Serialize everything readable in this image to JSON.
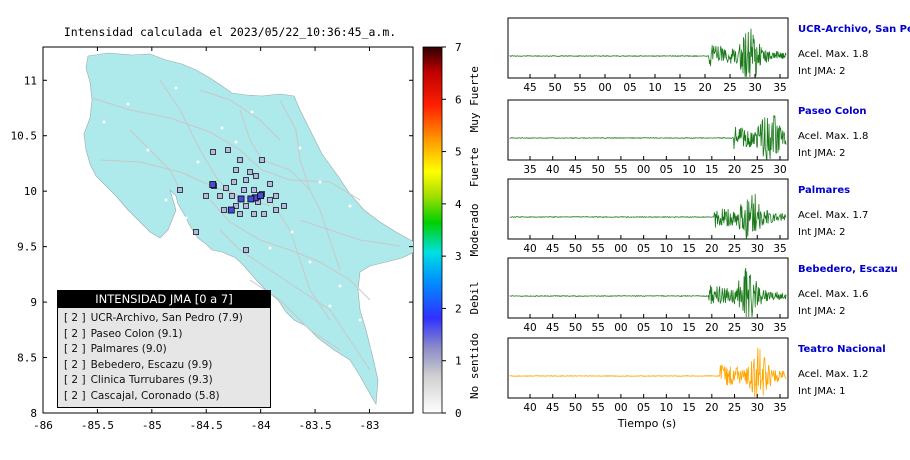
{
  "map": {
    "title": "Intensidad calculada el 2023/05/22_10:36:45_a.m.",
    "y_ticks": [
      "11",
      "10.5",
      "10",
      "9.5",
      "9",
      "8.5",
      "8"
    ],
    "x_ticks": [
      "-86",
      "-85.5",
      "-85",
      "-84.5",
      "-84",
      "-83.5",
      "-83"
    ]
  },
  "colorbar": {
    "ticks": [
      "7",
      "6",
      "5",
      "4",
      "3",
      "2",
      "1",
      "0"
    ],
    "labels": [
      "Muy Fuerte",
      "Fuerte",
      "Moderado",
      "Debil",
      "No sentido"
    ]
  },
  "legend": {
    "title": "INTENSIDAD JMA [0 a 7]",
    "rows": [
      {
        "level": "[ 2 ]",
        "name": "UCR-Archivo, San Pedro (7.9)"
      },
      {
        "level": "[ 2 ]",
        "name": "Paseo Colon (9.1)"
      },
      {
        "level": "[ 2 ]",
        "name": "Palmares (9.0)"
      },
      {
        "level": "[ 2 ]",
        "name": "Bebedero, Escazu (9.9)"
      },
      {
        "level": "[ 2 ]",
        "name": "Clinica Turrubares (9.3)"
      },
      {
        "level": "[ 2 ]",
        "name": "Cascajal, Coronado (5.8)"
      }
    ]
  },
  "traces": [
    {
      "station": "UCR-Archivo, San Pedro",
      "accel": "Acel. Max. 1.8",
      "jma": "Int JMA: 2",
      "ticks": [
        "45",
        "50",
        "55",
        "00",
        "05",
        "10",
        "15",
        "20",
        "25",
        "30",
        "35"
      ],
      "color": "#1a7a1a",
      "station_color": "#0000cc"
    },
    {
      "station": "Paseo Colon",
      "accel": "Acel. Max. 1.8",
      "jma": "Int JMA: 2",
      "ticks": [
        "35",
        "40",
        "45",
        "50",
        "55",
        "00",
        "05",
        "10",
        "15",
        "20",
        "25",
        "30"
      ],
      "color": "#1a7a1a",
      "station_color": "#0000cc"
    },
    {
      "station": "Palmares",
      "accel": "Acel. Max. 1.7",
      "jma": "Int JMA: 2",
      "ticks": [
        "40",
        "45",
        "50",
        "55",
        "00",
        "05",
        "10",
        "15",
        "20",
        "25",
        "30",
        "35"
      ],
      "color": "#1a7a1a",
      "station_color": "#0000cc"
    },
    {
      "station": "Bebedero, Escazu",
      "accel": "Acel. Max. 1.6",
      "jma": "Int JMA: 2",
      "ticks": [
        "40",
        "45",
        "50",
        "55",
        "00",
        "05",
        "10",
        "15",
        "20",
        "25",
        "30",
        "35"
      ],
      "color": "#1a7a1a",
      "station_color": "#0000cc"
    },
    {
      "station": "Teatro Nacional",
      "accel": "Acel. Max. 1.2",
      "jma": "Int JMA: 1",
      "ticks": [
        "40",
        "45",
        "50",
        "55",
        "00",
        "05",
        "10",
        "15",
        "20",
        "25",
        "30",
        "35"
      ],
      "color": "#ffa500",
      "station_color": "#0000cc"
    }
  ],
  "xlabel": "Tiempo (s)",
  "chart_data": [
    {
      "type": "scatter",
      "title": "Intensidad calculada el 2023/05/22_10:36:45_a.m.",
      "xlim": [
        -86,
        -82.6
      ],
      "ylim": [
        8,
        11.3
      ],
      "points": [
        {
          "lon": -84.05,
          "lat": 9.94,
          "jma": 2
        },
        {
          "lon": -84.09,
          "lat": 9.93,
          "jma": 2
        },
        {
          "lon": -84.44,
          "lat": 10.06,
          "jma": 2
        },
        {
          "lon": -84.18,
          "lat": 9.93,
          "jma": 2
        },
        {
          "lon": -84.27,
          "lat": 9.83,
          "jma": 2
        },
        {
          "lon": -84.0,
          "lat": 9.96,
          "jma": 2
        }
      ]
    },
    {
      "type": "line",
      "xlabel": "Tiempo (s)",
      "series": [
        {
          "name": "UCR-Archivo, San Pedro",
          "peak": 1.8
        },
        {
          "name": "Paseo Colon",
          "peak": 1.8
        },
        {
          "name": "Palmares",
          "peak": 1.7
        },
        {
          "name": "Bebedero, Escazu",
          "peak": 1.6
        },
        {
          "name": "Teatro Nacional",
          "peak": 1.2
        }
      ]
    }
  ]
}
